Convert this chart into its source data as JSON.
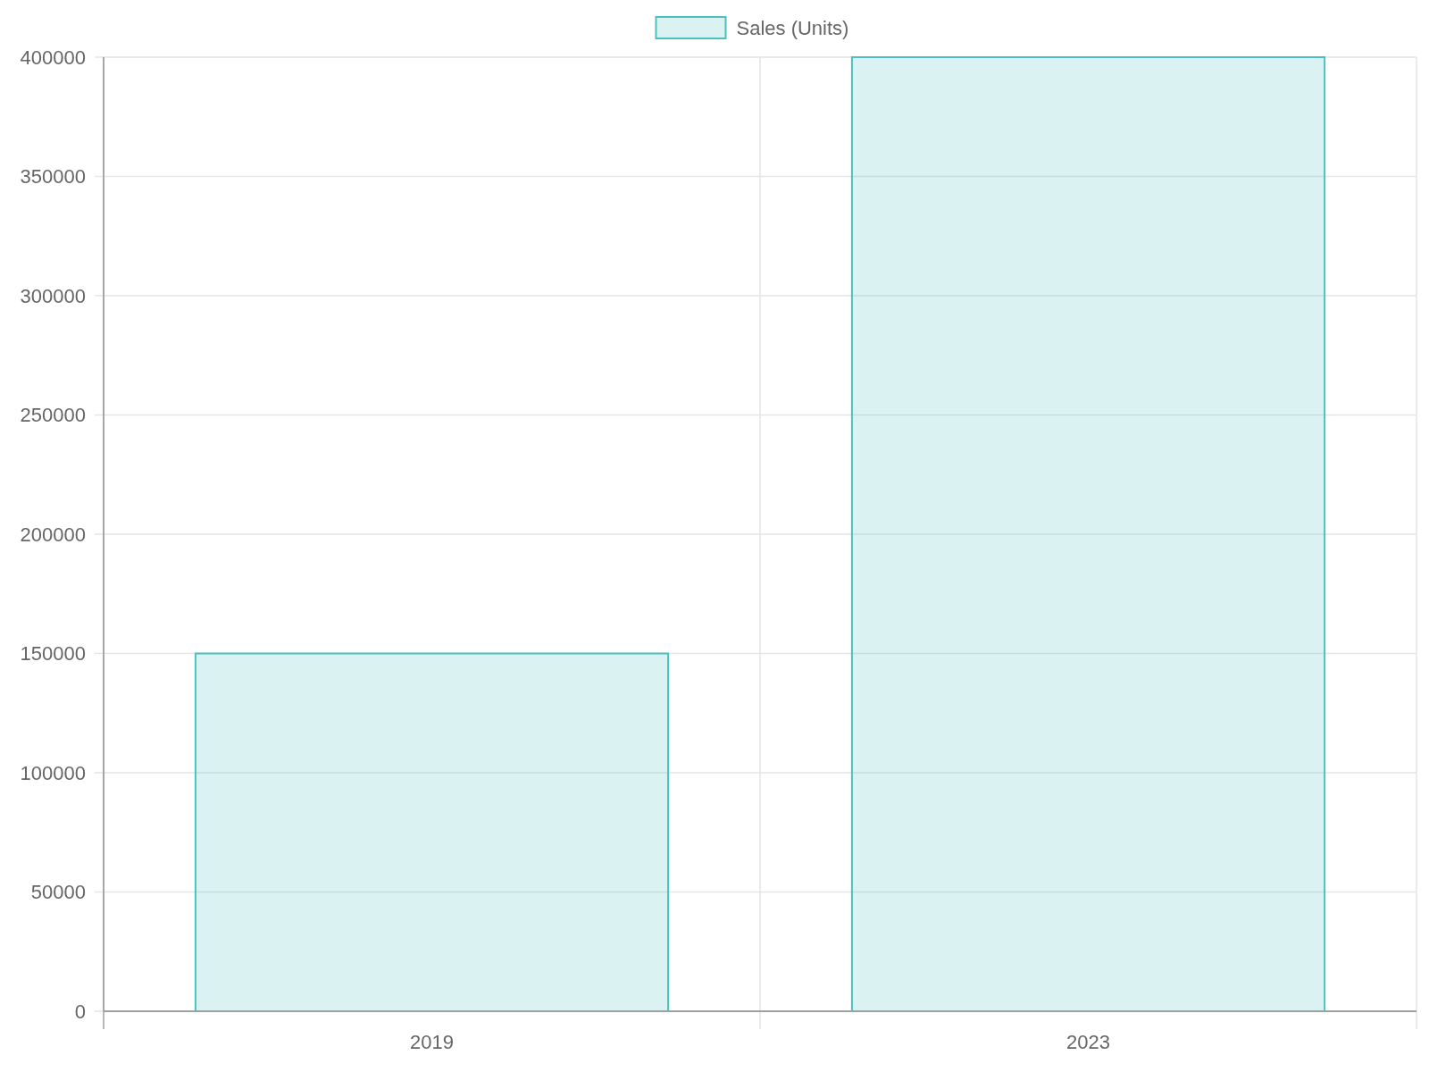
{
  "chart_data": {
    "type": "bar",
    "categories": [
      "2019",
      "2023"
    ],
    "series": [
      {
        "name": "Sales (Units)",
        "color": "#4bc0c0",
        "values": [
          150000,
          400000
        ]
      }
    ],
    "ylim": [
      0,
      400000
    ],
    "yticks": [
      0,
      50000,
      100000,
      150000,
      200000,
      250000,
      300000,
      350000,
      400000
    ],
    "grid": true,
    "legend": "top"
  }
}
